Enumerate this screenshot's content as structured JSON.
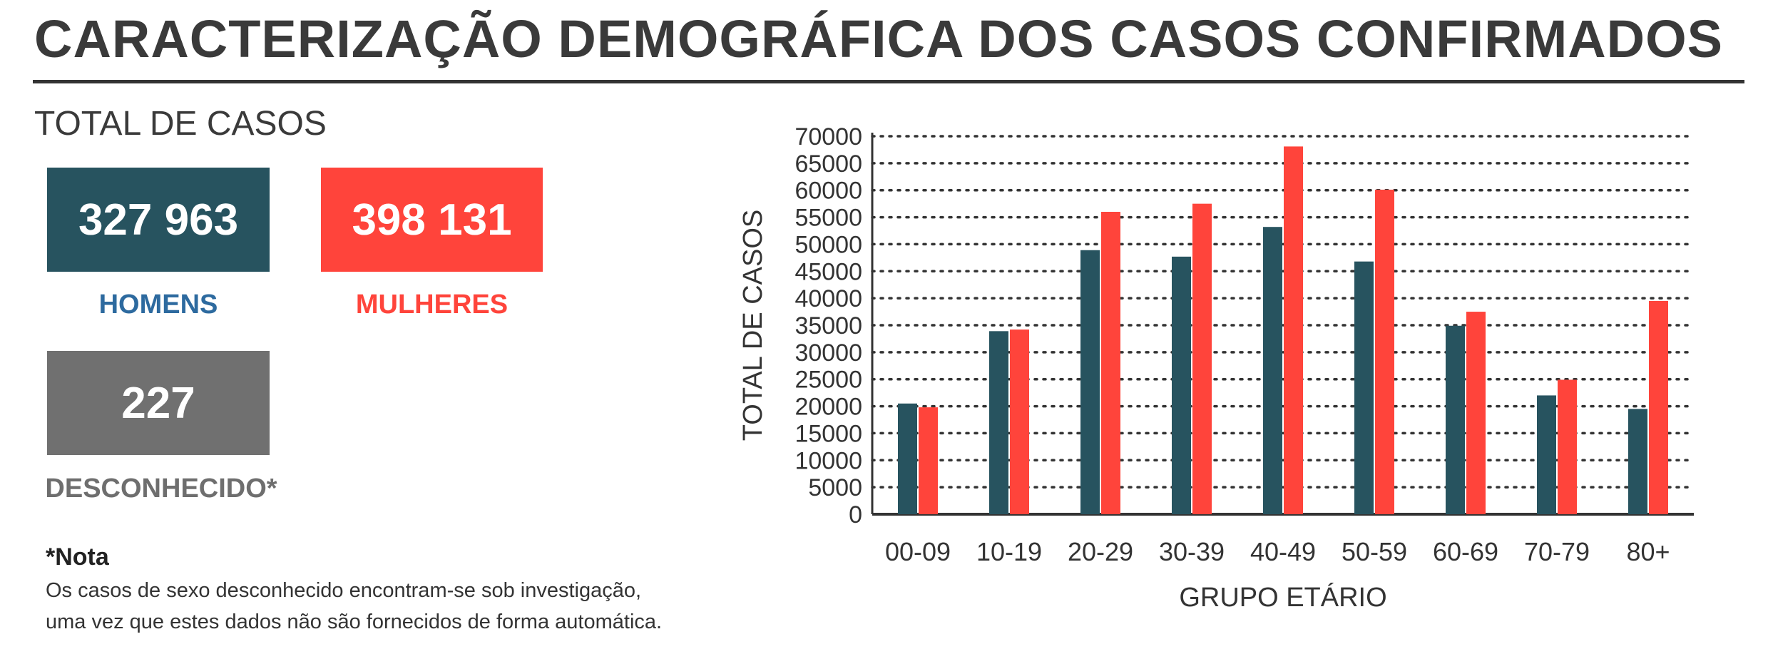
{
  "header": {
    "title": "CARACTERIZAÇÃO DEMOGRÁFICA DOS CASOS CONFIRMADOS"
  },
  "totals": {
    "label": "TOTAL DE CASOS",
    "men": {
      "value": "327 963",
      "label": "HOMENS"
    },
    "women": {
      "value": "398 131",
      "label": "MULHERES"
    },
    "unknown": {
      "value": "227",
      "label": "DESCONHECIDO*"
    }
  },
  "note": {
    "title": "*Nota",
    "line1": "Os casos de sexo desconhecido encontram-se sob investigação,",
    "line2": "uma vez que estes dados não são fornecidos de forma automática."
  },
  "colors": {
    "men": "#27535f",
    "women": "#ff443b",
    "unknown": "#707070",
    "men_label": "#2d6a9f",
    "women_label": "#ff443b",
    "unknown_label": "#6e6e6e"
  },
  "chart_data": {
    "type": "bar",
    "categories": [
      "00-09",
      "10-19",
      "20-29",
      "30-39",
      "40-49",
      "50-59",
      "60-69",
      "70-79",
      "80+"
    ],
    "series": [
      {
        "values": [
          20500,
          33900,
          48900,
          47700,
          53200,
          46800,
          34900,
          22000,
          19500
        ]
      },
      {
        "values": [
          19800,
          34200,
          56000,
          57500,
          68100,
          60100,
          37500,
          24900,
          39500
        ]
      }
    ],
    "xlabel": "GRUPO ETÁRIO",
    "ylabel": "TOTAL DE CASOS",
    "ylim": [
      0,
      70000
    ],
    "yticks": [
      0,
      5000,
      10000,
      15000,
      20000,
      25000,
      30000,
      35000,
      40000,
      45000,
      50000,
      55000,
      60000,
      65000,
      70000
    ],
    "grid": true,
    "legend": "none"
  }
}
